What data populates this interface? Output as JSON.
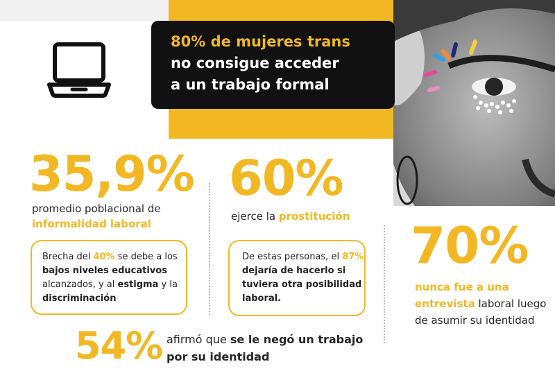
{
  "headline": {
    "line1": "80% de mujeres trans",
    "line2": "no consigue acceder",
    "line3": "a un trabajo formal"
  },
  "stat_informality": {
    "value": "35,9%",
    "text_plain": "promedio poblacional de",
    "text_highlight": "informalidad laboral"
  },
  "box_informality": {
    "p1": "Brecha del ",
    "p2": "40%",
    "p3": " se debe a los ",
    "p4": "bajos niveles educativos",
    "p5": " alcanzados, y al ",
    "p6": "estigma",
    "p7": " y la ",
    "p8": "discriminación"
  },
  "stat_prostitution": {
    "value": "60%",
    "text_plain": "ejerce la ",
    "text_highlight": "prostitución"
  },
  "box_prostitution": {
    "p1": "De estas personas, el ",
    "p2": "87%",
    "p3": " dejaría de hacerlo si tuviera otra posibilidad laboral."
  },
  "stat_interview": {
    "value": "70%",
    "text_highlight_1": "nunca fue a una",
    "text_highlight_2": "entrevista",
    "text_plain": " laboral luego de asumir su identidad"
  },
  "stat_denied": {
    "value": "54%",
    "text_plain": "afirmó que ",
    "text_bold": "se le negó un trabajo por su identidad"
  },
  "colors": {
    "accent": "#f2b824",
    "dark": "#111111"
  }
}
